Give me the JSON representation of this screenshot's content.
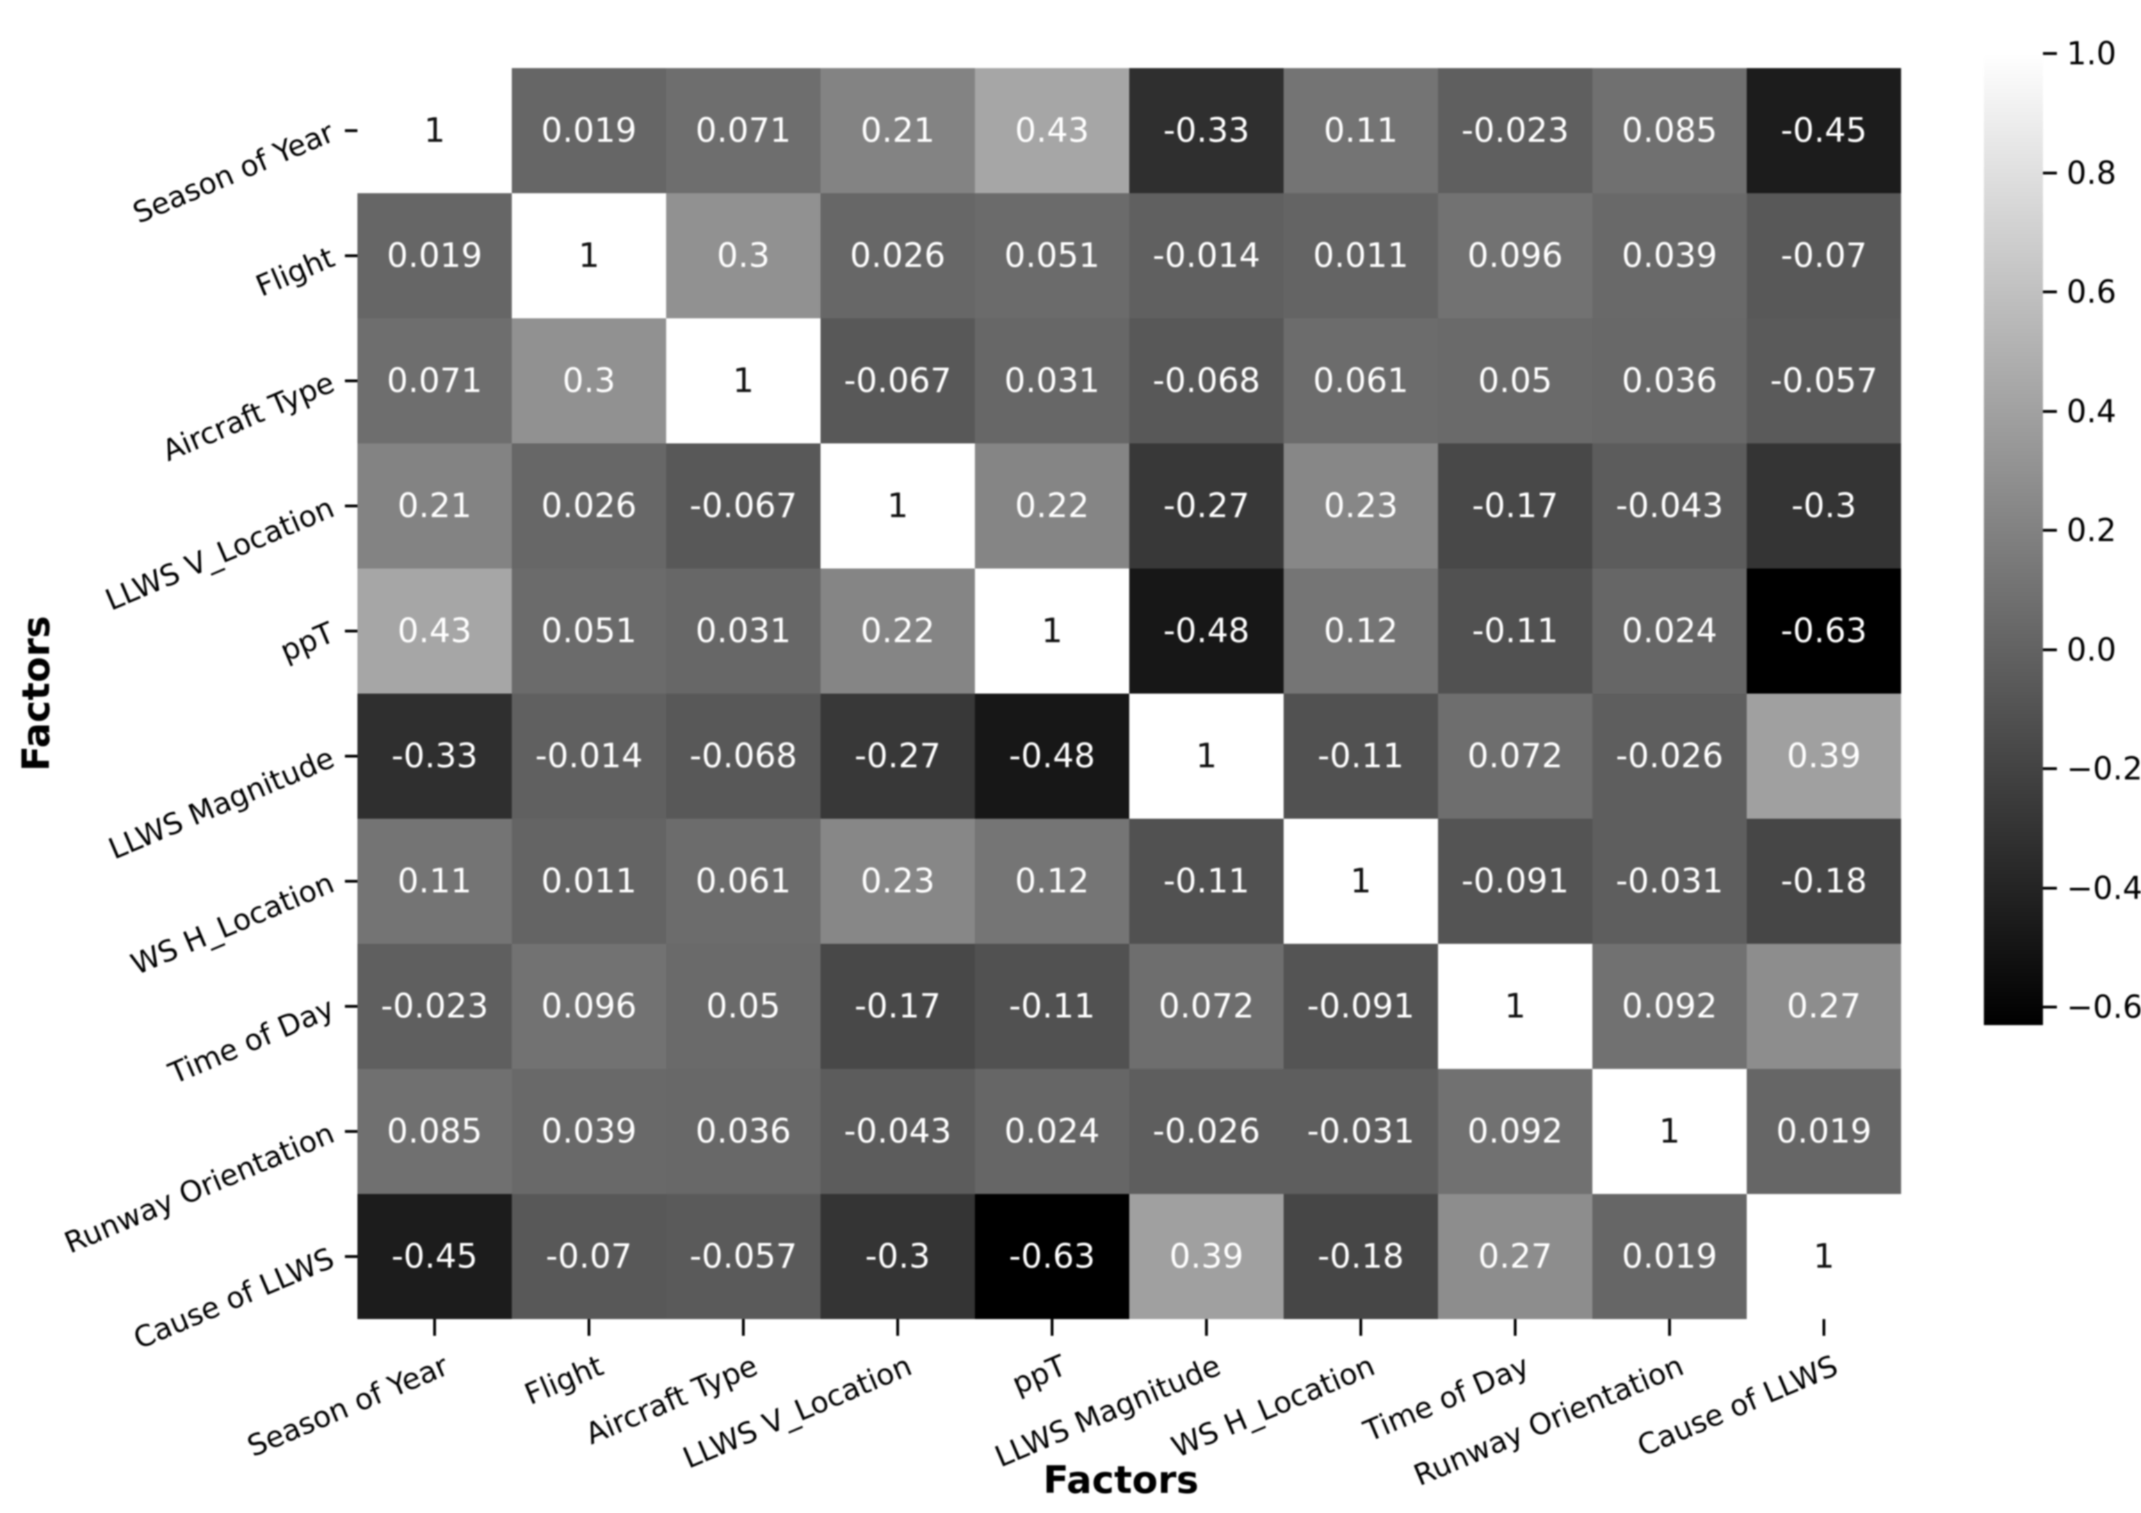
{
  "chart_data": {
    "type": "heatmap",
    "title": "",
    "xlabel": "Factors",
    "ylabel": "Factors",
    "x_categories": [
      "Season of Year",
      "Flight",
      "Aircraft Type",
      "LLWS V_Location",
      "ppT",
      "LLWS Magnitude",
      "WS H_Location",
      "Time of Day",
      "Runway Orientation",
      "Cause of LLWS"
    ],
    "y_categories": [
      "Season of Year",
      "Flight",
      "Aircraft Type",
      "LLWS V_Location",
      "ppT",
      "LLWS Magnitude",
      "WS H_Location",
      "Time of Day",
      "Runway Orientation",
      "Cause of LLWS"
    ],
    "values": [
      [
        1,
        0.019,
        0.071,
        0.21,
        0.43,
        -0.33,
        0.11,
        -0.023,
        0.085,
        -0.45
      ],
      [
        0.019,
        1,
        0.3,
        0.026,
        0.051,
        -0.014,
        0.011,
        0.096,
        0.039,
        -0.07
      ],
      [
        0.071,
        0.3,
        1,
        -0.067,
        0.031,
        -0.068,
        0.061,
        0.05,
        0.036,
        -0.057
      ],
      [
        0.21,
        0.026,
        -0.067,
        1,
        0.22,
        -0.27,
        0.23,
        -0.17,
        -0.043,
        -0.3
      ],
      [
        0.43,
        0.051,
        0.031,
        0.22,
        1,
        -0.48,
        0.12,
        -0.11,
        0.024,
        -0.63
      ],
      [
        -0.33,
        -0.014,
        -0.068,
        -0.27,
        -0.48,
        1,
        -0.11,
        0.072,
        -0.026,
        0.39
      ],
      [
        0.11,
        0.011,
        0.061,
        0.23,
        0.12,
        -0.11,
        1,
        -0.091,
        -0.031,
        -0.18
      ],
      [
        -0.023,
        0.096,
        0.05,
        -0.17,
        -0.11,
        0.072,
        -0.091,
        1,
        0.092,
        0.27
      ],
      [
        0.085,
        0.039,
        0.036,
        -0.043,
        0.024,
        -0.026,
        -0.031,
        0.092,
        1,
        0.019
      ],
      [
        -0.45,
        -0.07,
        -0.057,
        -0.3,
        -0.63,
        0.39,
        -0.18,
        0.27,
        0.019,
        1
      ]
    ],
    "labels": [
      [
        "1",
        "0.019",
        "0.071",
        "0.21",
        "0.43",
        "-0.33",
        "0.11",
        "-0.023",
        "0.085",
        "-0.45"
      ],
      [
        "0.019",
        "1",
        "0.3",
        "0.026",
        "0.051",
        "-0.014",
        "0.011",
        "0.096",
        "0.039",
        "-0.07"
      ],
      [
        "0.071",
        "0.3",
        "1",
        "-0.067",
        "0.031",
        "-0.068",
        "0.061",
        "0.05",
        "0.036",
        "-0.057"
      ],
      [
        "0.21",
        "0.026",
        "-0.067",
        "1",
        "0.22",
        "-0.27",
        "0.23",
        "-0.17",
        "-0.043",
        "-0.3"
      ],
      [
        "0.43",
        "0.051",
        "0.031",
        "0.22",
        "1",
        "-0.48",
        "0.12",
        "-0.11",
        "0.024",
        "-0.63"
      ],
      [
        "-0.33",
        "-0.014",
        "-0.068",
        "-0.27",
        "-0.48",
        "1",
        "-0.11",
        "0.072",
        "-0.026",
        "0.39"
      ],
      [
        "0.11",
        "0.011",
        "0.061",
        "0.23",
        "0.12",
        "-0.11",
        "1",
        "-0.091",
        "-0.031",
        "-0.18"
      ],
      [
        "-0.023",
        "0.096",
        "0.05",
        "-0.17",
        "-0.11",
        "0.072",
        "-0.091",
        "1",
        "0.092",
        "0.27"
      ],
      [
        "0.085",
        "0.039",
        "0.036",
        "-0.043",
        "0.024",
        "-0.026",
        "-0.031",
        "0.092",
        "1",
        "0.019"
      ],
      [
        "-0.45",
        "-0.07",
        "-0.057",
        "-0.3",
        "-0.63",
        "0.39",
        "-0.18",
        "0.27",
        "0.019",
        "1"
      ]
    ],
    "colormap": "gray",
    "vmin": -0.63,
    "vmax": 1.0,
    "grid": false,
    "legend": false,
    "colorbar": {
      "position": "right",
      "tick_values": [
        1.0,
        0.8,
        0.6,
        0.4,
        0.2,
        0.0,
        -0.2,
        -0.4,
        -0.6
      ],
      "tick_labels": [
        "1.0",
        "0.8",
        "0.6",
        "0.4",
        "0.2",
        "0.0",
        "−0.2",
        "−0.4",
        "−0.6"
      ]
    },
    "annotation_colors": {
      "on_dark_cell": "#ffffff",
      "on_light_cell": "#111111"
    }
  }
}
